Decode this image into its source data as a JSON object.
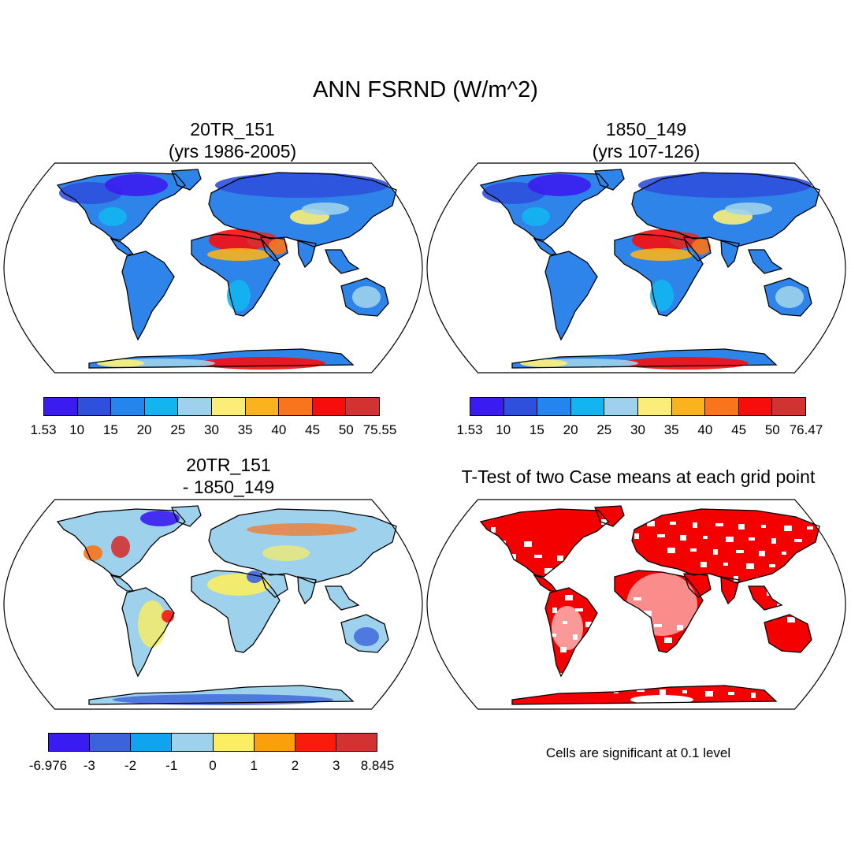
{
  "title": "ANN FSRND (W/m^2)",
  "panels": [
    {
      "title_line1": "20TR_151",
      "title_line2": "(yrs 1986-2005)",
      "colorbar": {
        "colors": [
          "#3b1cf0",
          "#2f50dc",
          "#2585ee",
          "#12b5f0",
          "#9dd1ec",
          "#fbee78",
          "#fbb31d",
          "#f9741a",
          "#f80d0d",
          "#d33232"
        ],
        "labels": [
          "1.53",
          "10",
          "15",
          "20",
          "25",
          "30",
          "35",
          "40",
          "45",
          "50",
          "75.55"
        ]
      }
    },
    {
      "title_line1": "1850_149",
      "title_line2": "(yrs 107-126)",
      "colorbar": {
        "colors": [
          "#3b1cf0",
          "#2f50dc",
          "#2585ee",
          "#12b5f0",
          "#9dd1ec",
          "#fbee78",
          "#fbb31d",
          "#f9741a",
          "#f80d0d",
          "#d33232"
        ],
        "labels": [
          "1.53",
          "10",
          "15",
          "20",
          "25",
          "30",
          "35",
          "40",
          "45",
          "50",
          "76.47"
        ]
      }
    },
    {
      "title_line1": "20TR_151",
      "title_line2": "- 1850_149",
      "colorbar": {
        "colors": [
          "#3b1cf0",
          "#3c63dc",
          "#10a4f0",
          "#9dd1ec",
          "#fbee62",
          "#fb9f0d",
          "#f81c0d",
          "#d33232"
        ],
        "labels": [
          "-6.976",
          "-3",
          "-2",
          "-1",
          "0",
          "1",
          "2",
          "3",
          "8.845"
        ]
      }
    },
    {
      "title_line1": "T-Test of two Case means at each grid point"
    }
  ],
  "significance_note": "Cells are significant at 0.1 level",
  "colors": {
    "land_default": "#2f84ea",
    "significant": "#f40000",
    "coast": "#000000"
  }
}
